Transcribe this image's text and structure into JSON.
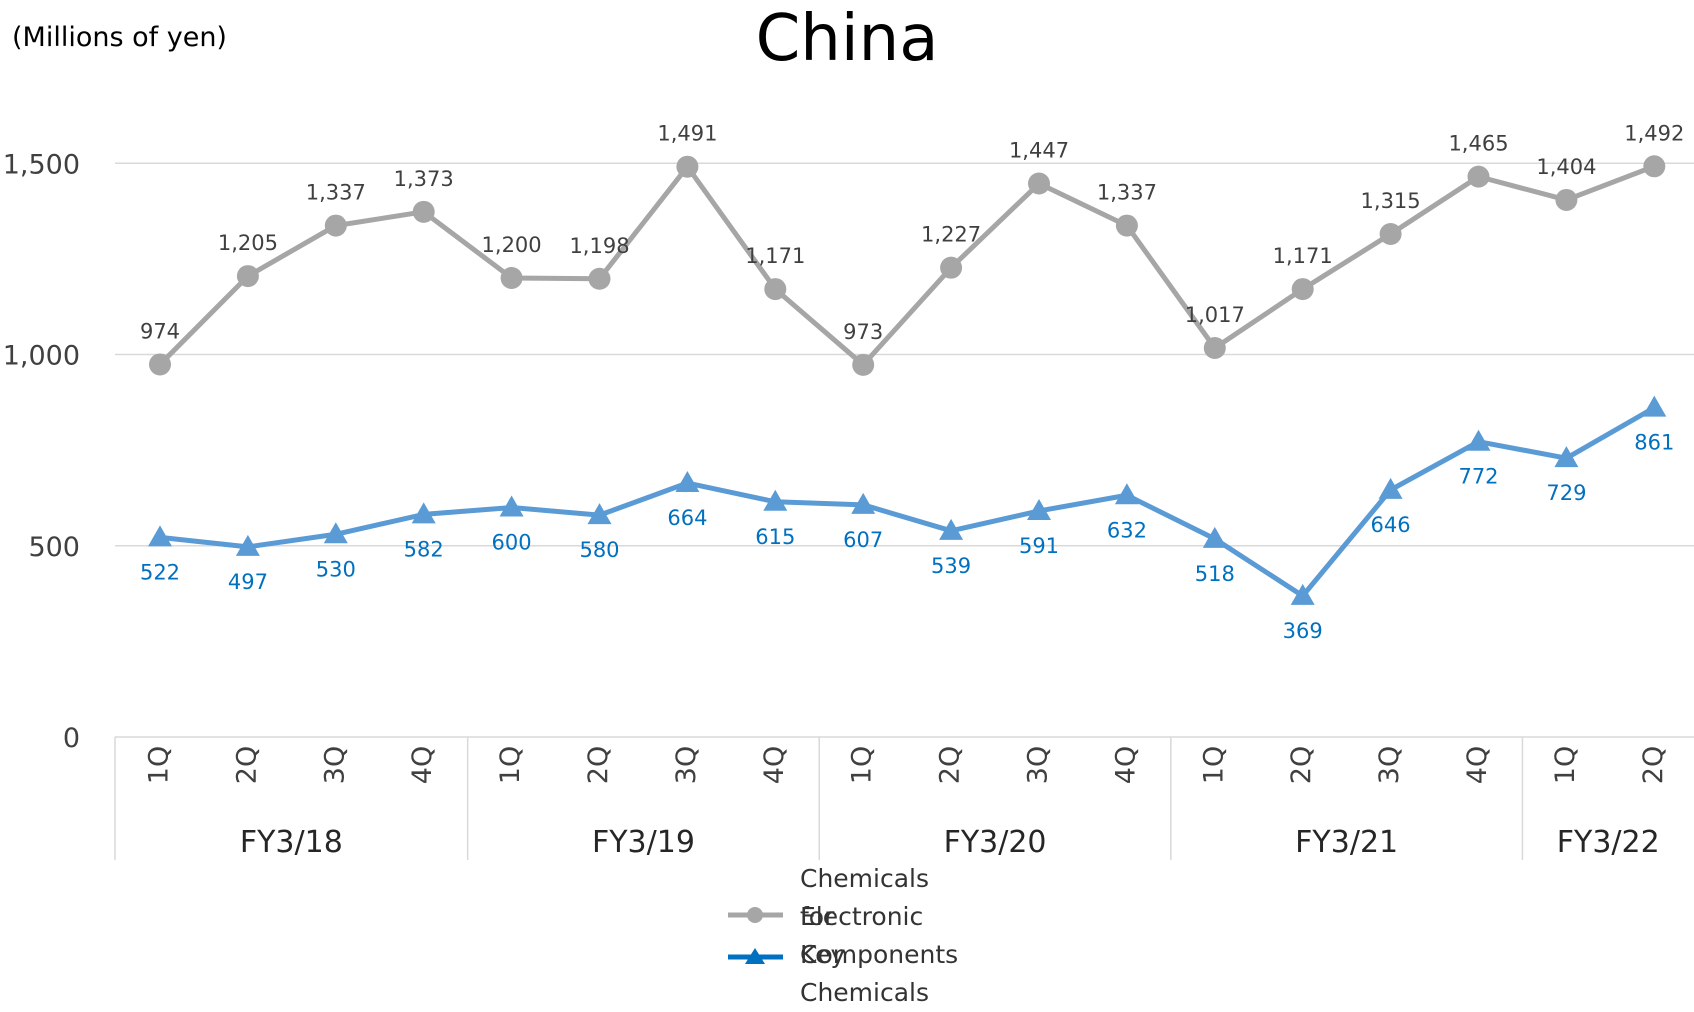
{
  "chart_data": {
    "type": "line",
    "title": "China",
    "unit_label": "(Millions of yen)",
    "ylim": [
      0,
      1600
    ],
    "yticks": [
      0,
      500,
      1000,
      1500
    ],
    "ytick_labels": [
      "0",
      "500",
      "1,000",
      "1,500"
    ],
    "grid": true,
    "legend_position": "bottom",
    "categories": [
      "1Q",
      "2Q",
      "3Q",
      "4Q",
      "1Q",
      "2Q",
      "3Q",
      "4Q",
      "1Q",
      "2Q",
      "3Q",
      "4Q",
      "1Q",
      "2Q",
      "3Q",
      "4Q",
      "1Q",
      "2Q"
    ],
    "groups": [
      {
        "label": "FY3/18",
        "count": 4
      },
      {
        "label": "FY3/19",
        "count": 4
      },
      {
        "label": "FY3/20",
        "count": 4
      },
      {
        "label": "FY3/21",
        "count": 4
      },
      {
        "label": "FY3/22",
        "count": 2
      }
    ],
    "series": [
      {
        "name": "Chemicals for Electronic Components",
        "name_lines": [
          "Chemicals for",
          "Electronic Components"
        ],
        "color": "#a6a6a6",
        "marker": "circle",
        "label_color": "#404040",
        "label_position": "above",
        "values": [
          974,
          1205,
          1337,
          1373,
          1200,
          1198,
          1491,
          1171,
          973,
          1227,
          1447,
          1337,
          1017,
          1171,
          1315,
          1465,
          1404,
          1492
        ],
        "labels": [
          "974",
          "1,205",
          "1,337",
          "1,373",
          "1,200",
          "1,198",
          "1,491",
          "1,171",
          "973",
          "1,227",
          "1,447",
          "1,337",
          "1,017",
          "1,171",
          "1,315",
          "1,465",
          "1,404",
          "1,492"
        ]
      },
      {
        "name": "Key Chemicals",
        "name_lines": [
          "Key Chemicals"
        ],
        "color": "#5b9bd5",
        "marker": "triangle",
        "label_color": "#0070c0",
        "label_position": "below",
        "values": [
          522,
          497,
          530,
          582,
          600,
          580,
          664,
          615,
          607,
          539,
          591,
          632,
          518,
          369,
          646,
          772,
          729,
          861
        ],
        "labels": [
          "522",
          "497",
          "530",
          "582",
          "600",
          "580",
          "664",
          "615",
          "607",
          "539",
          "591",
          "632",
          "518",
          "369",
          "646",
          "772",
          "729",
          "861"
        ]
      }
    ]
  }
}
